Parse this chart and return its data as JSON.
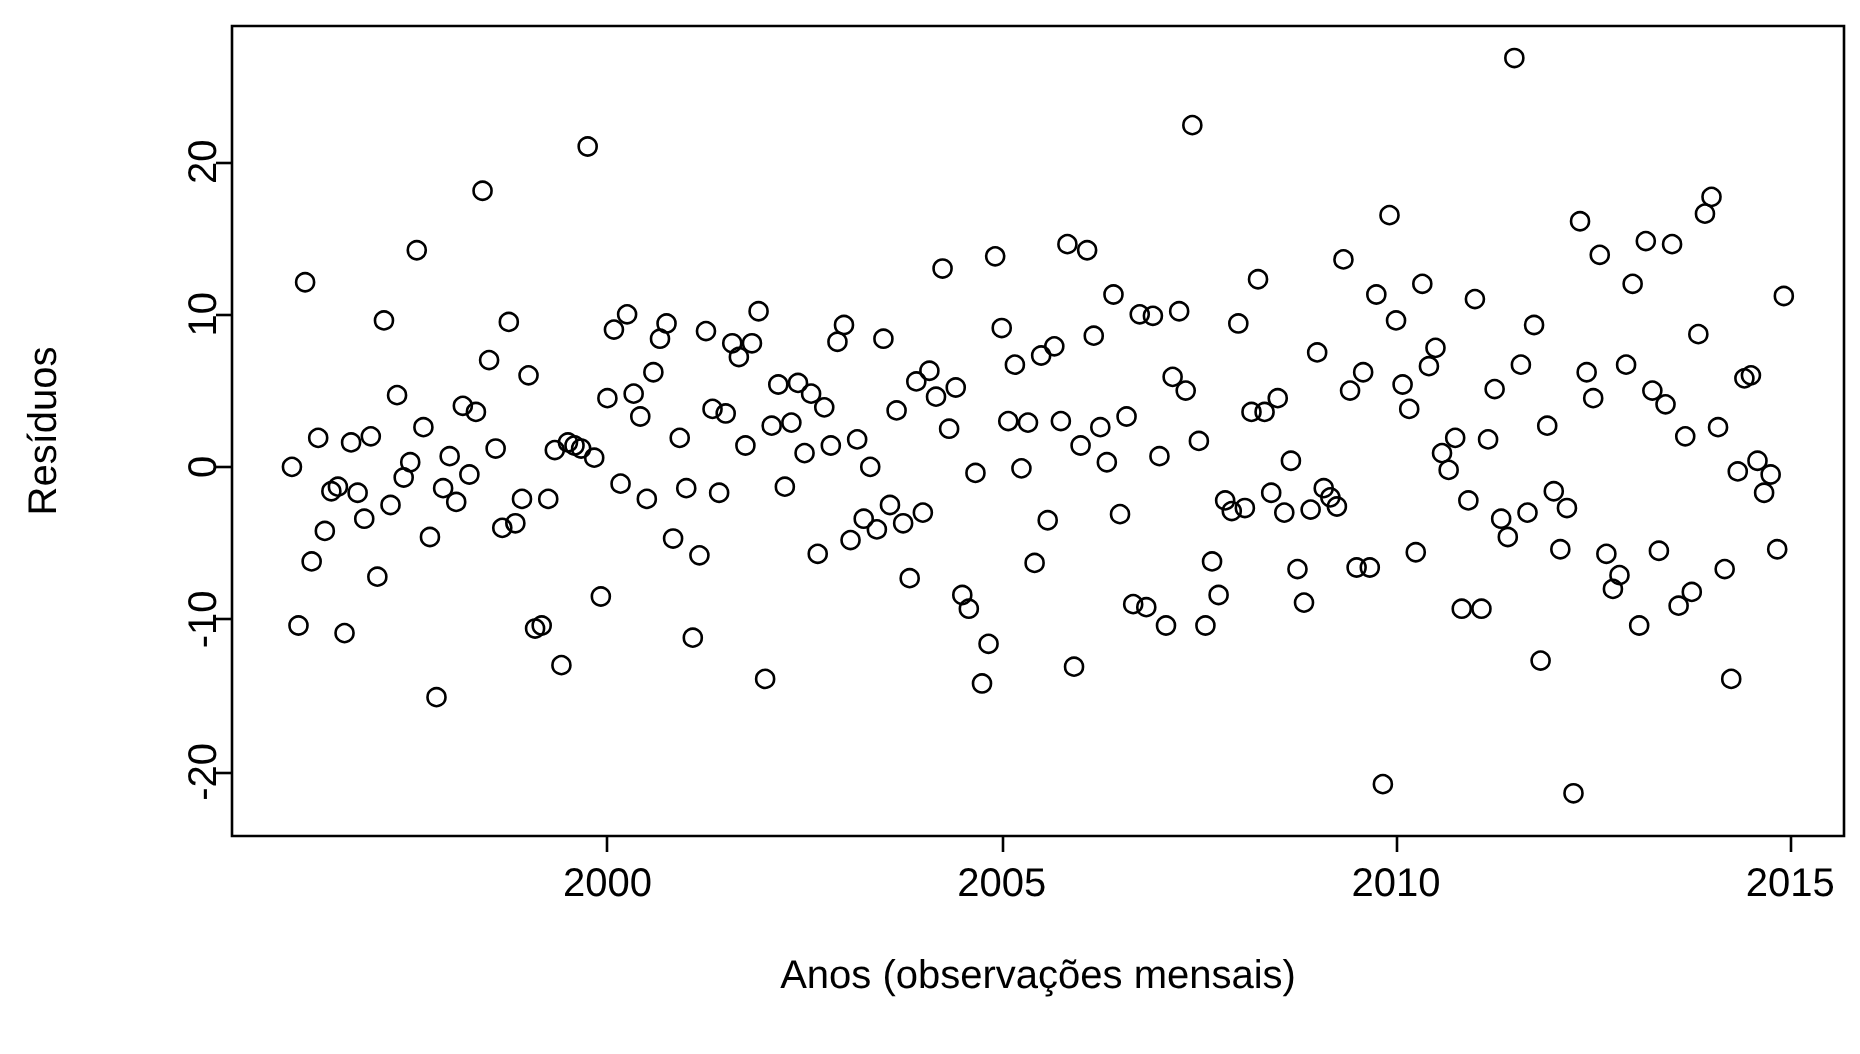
{
  "chart_data": {
    "type": "scatter",
    "xlabel": "Anos (observações mensais)",
    "ylabel": "Resíduos",
    "xlim": [
      1995.24,
      2015.68
    ],
    "xticks": [
      2000,
      2005,
      2010,
      2015
    ],
    "ylim": [
      -24.2,
      28.9
    ],
    "yticks": [
      -20,
      -10,
      0,
      10,
      20
    ],
    "grid": false,
    "marker": "circle",
    "series": [
      {
        "color": "#000000",
        "x": [
          1996,
          1996.083,
          1996.167,
          1996.25,
          1996.333,
          1996.417,
          1996.5,
          1996.583,
          1996.667,
          1996.75,
          1996.833,
          1996.917,
          1997,
          1997.083,
          1997.167,
          1997.25,
          1997.333,
          1997.417,
          1997.5,
          1997.583,
          1997.667,
          1997.75,
          1997.833,
          1997.917,
          1998,
          1998.083,
          1998.167,
          1998.25,
          1998.333,
          1998.417,
          1998.5,
          1998.583,
          1998.667,
          1998.75,
          1998.833,
          1998.917,
          1999,
          1999.083,
          1999.167,
          1999.25,
          1999.333,
          1999.417,
          1999.5,
          1999.583,
          1999.667,
          1999.75,
          1999.833,
          1999.917,
          2000,
          2000.083,
          2000.167,
          2000.25,
          2000.333,
          2000.417,
          2000.5,
          2000.583,
          2000.667,
          2000.75,
          2000.833,
          2000.917,
          2001,
          2001.083,
          2001.167,
          2001.25,
          2001.333,
          2001.417,
          2001.5,
          2001.583,
          2001.667,
          2001.75,
          2001.833,
          2001.917,
          2002,
          2002.083,
          2002.167,
          2002.25,
          2002.333,
          2002.417,
          2002.5,
          2002.583,
          2002.667,
          2002.75,
          2002.833,
          2002.917,
          2003,
          2003.083,
          2003.167,
          2003.25,
          2003.333,
          2003.417,
          2003.5,
          2003.583,
          2003.667,
          2003.75,
          2003.833,
          2003.917,
          2004,
          2004.083,
          2004.167,
          2004.25,
          2004.333,
          2004.417,
          2004.5,
          2004.583,
          2004.667,
          2004.75,
          2004.833,
          2004.917,
          2005,
          2005.083,
          2005.167,
          2005.25,
          2005.333,
          2005.417,
          2005.5,
          2005.583,
          2005.667,
          2005.75,
          2005.833,
          2005.917,
          2006,
          2006.083,
          2006.167,
          2006.25,
          2006.333,
          2006.417,
          2006.5,
          2006.583,
          2006.667,
          2006.75,
          2006.833,
          2006.917,
          2007,
          2007.083,
          2007.167,
          2007.25,
          2007.333,
          2007.417,
          2007.5,
          2007.583,
          2007.667,
          2007.75,
          2007.833,
          2007.917,
          2008,
          2008.083,
          2008.167,
          2008.25,
          2008.333,
          2008.417,
          2008.5,
          2008.583,
          2008.667,
          2008.75,
          2008.833,
          2008.917,
          2009,
          2009.083,
          2009.167,
          2009.25,
          2009.333,
          2009.417,
          2009.5,
          2009.583,
          2009.667,
          2009.75,
          2009.833,
          2009.917,
          2010,
          2010.083,
          2010.167,
          2010.25,
          2010.333,
          2010.417,
          2010.5,
          2010.583,
          2010.667,
          2010.75,
          2010.833,
          2010.917,
          2011,
          2011.083,
          2011.167,
          2011.25,
          2011.333,
          2011.417,
          2011.5,
          2011.583,
          2011.667,
          2011.75,
          2011.833,
          2011.917,
          2012,
          2012.083,
          2012.167,
          2012.25,
          2012.333,
          2012.417,
          2012.5,
          2012.583,
          2012.667,
          2012.75,
          2012.833,
          2012.917,
          2013,
          2013.083,
          2013.167,
          2013.25,
          2013.333,
          2013.417,
          2013.5,
          2013.583,
          2013.667,
          2013.75,
          2013.833,
          2013.917,
          2014,
          2014.083,
          2014.167,
          2014.25,
          2014.333,
          2014.417,
          2014.5,
          2014.583,
          2014.667,
          2014.75,
          2014.833,
          2014.917
        ],
        "values": [
          0.0,
          -10.4,
          12.1,
          -6.2,
          1.9,
          -4.2,
          -1.6,
          -1.3,
          -10.9,
          1.6,
          -1.7,
          -3.4,
          2.0,
          -7.2,
          9.6,
          -2.5,
          4.7,
          -0.7,
          0.3,
          14.2,
          2.6,
          -4.6,
          -15.1,
          -1.4,
          0.7,
          -2.3,
          4.0,
          -0.5,
          3.6,
          18.1,
          7.0,
          1.2,
          -4.0,
          9.5,
          -3.7,
          -2.1,
          6.0,
          -10.6,
          -10.4,
          -2.1,
          1.1,
          -13.0,
          1.6,
          1.4,
          1.2,
          21.0,
          0.6,
          -8.5,
          4.5,
          9.0,
          -1.1,
          10.0,
          4.8,
          3.3,
          -2.1,
          6.2,
          8.4,
          9.4,
          -4.7,
          1.9,
          -1.4,
          -11.2,
          -5.8,
          8.9,
          3.8,
          -1.7,
          3.5,
          8.1,
          7.2,
          1.4,
          8.1,
          10.2,
          -13.9,
          2.7,
          5.4,
          -1.3,
          2.9,
          5.5,
          0.9,
          4.8,
          -5.7,
          3.9,
          1.4,
          8.2,
          9.3,
          -4.8,
          1.8,
          -3.4,
          0.0,
          -4.1,
          8.4,
          -2.5,
          3.7,
          -3.7,
          -7.3,
          5.6,
          -3.0,
          6.3,
          4.6,
          13.0,
          2.5,
          5.2,
          -8.4,
          -9.3,
          -0.4,
          -14.2,
          -11.6,
          13.8,
          9.1,
          3.0,
          6.7,
          -0.1,
          2.9,
          -6.3,
          7.3,
          -3.5,
          7.9,
          3.0,
          14.6,
          -13.1,
          1.4,
          14.2,
          8.6,
          2.6,
          0.3,
          11.3,
          -3.1,
          3.3,
          -9.0,
          10.0,
          -9.2,
          9.9,
          0.7,
          -10.4,
          5.9,
          10.2,
          5.0,
          22.4,
          1.7,
          -10.4,
          -6.2,
          -8.4,
          -2.2,
          -2.9,
          9.4,
          -2.7,
          3.6,
          12.3,
          3.6,
          -1.7,
          4.5,
          -3.0,
          0.4,
          -6.7,
          -8.9,
          -2.8,
          7.5,
          -1.4,
          -2.0,
          -2.6,
          13.6,
          5.0,
          -6.6,
          6.2,
          -6.6,
          11.3,
          -20.8,
          16.5,
          9.6,
          5.4,
          3.8,
          -5.6,
          12.0,
          6.6,
          7.8,
          0.9,
          -0.2,
          1.9,
          -9.3,
          -2.2,
          11.0,
          -9.3,
          1.8,
          5.1,
          -3.4,
          -4.6,
          26.8,
          6.7,
          -3.0,
          9.3,
          -12.7,
          2.7,
          -1.6,
          -5.4,
          -2.7,
          -21.4,
          16.1,
          6.2,
          4.5,
          13.9,
          -5.7,
          -8.0,
          -7.1,
          6.7,
          12.0,
          -10.4,
          14.8,
          5.0,
          -5.5,
          4.1,
          14.6,
          -9.1,
          2.0,
          -8.2,
          8.7,
          16.6,
          17.7,
          2.6,
          -6.7,
          -13.9,
          -0.3,
          5.8,
          6.0,
          0.4,
          -1.7,
          -0.5,
          -5.4,
          11.2
        ]
      }
    ]
  }
}
